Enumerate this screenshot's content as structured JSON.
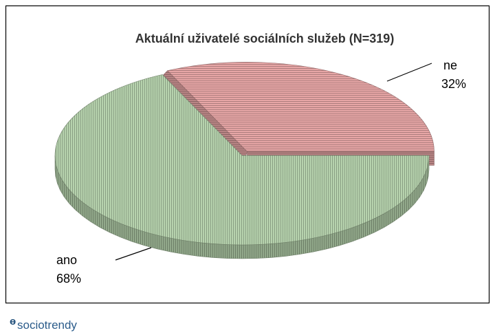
{
  "chart_data": {
    "type": "pie",
    "title": "Aktuální uživatelé sociálních služeb (N=319)",
    "categories": [
      "ne",
      "ano"
    ],
    "values": [
      32,
      68
    ],
    "value_labels": [
      "32%",
      "68%"
    ],
    "colors": [
      "#e7a6a6",
      "#b7d3ae"
    ],
    "logo": "sociotrendy"
  }
}
